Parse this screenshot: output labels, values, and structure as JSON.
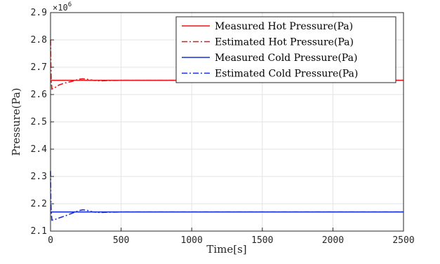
{
  "chart_data": {
    "type": "line",
    "xlabel": "Time[s]",
    "ylabel": "Pressure(Pa)",
    "xlim": [
      0,
      2500
    ],
    "ylim": [
      2.1,
      2.9
    ],
    "y_exponent_label": "×10",
    "y_exponent_power": "6",
    "xticks": [
      0,
      500,
      1000,
      1500,
      2000,
      2500
    ],
    "yticks": [
      2.1,
      2.2,
      2.3,
      2.4,
      2.5,
      2.6,
      2.7,
      2.8,
      2.9
    ],
    "grid": true,
    "legend_position": "top-right",
    "series": [
      {
        "name": "Measured Hot Pressure(Pa)",
        "color": "#e8151b",
        "style": "solid",
        "x": [
          0,
          2500
        ],
        "y": [
          2.652,
          2.652
        ]
      },
      {
        "name": "Estimated Hot Pressure(Pa)",
        "color": "#e8151b",
        "style": "dashdot",
        "x": [
          0,
          2,
          5,
          10,
          30,
          60,
          100,
          150,
          200,
          230,
          260,
          300,
          350,
          400,
          500,
          700,
          1000,
          1500,
          2000,
          2500
        ],
        "y": [
          2.8,
          2.72,
          2.65,
          2.62,
          2.625,
          2.635,
          2.642,
          2.648,
          2.656,
          2.658,
          2.656,
          2.652,
          2.65,
          2.651,
          2.652,
          2.652,
          2.652,
          2.652,
          2.652,
          2.652
        ]
      },
      {
        "name": "Measured Cold Pressure(Pa)",
        "color": "#1a2fd6",
        "style": "solid",
        "x": [
          0,
          2500
        ],
        "y": [
          2.17,
          2.17
        ]
      },
      {
        "name": "Estimated Cold Pressure(Pa)",
        "color": "#1a2fd6",
        "style": "dashdot",
        "x": [
          0,
          2,
          5,
          10,
          30,
          60,
          100,
          150,
          200,
          230,
          260,
          300,
          350,
          400,
          500,
          700,
          1000,
          1500,
          2000,
          2500
        ],
        "y": [
          2.32,
          2.22,
          2.17,
          2.14,
          2.142,
          2.148,
          2.155,
          2.165,
          2.175,
          2.178,
          2.176,
          2.17,
          2.168,
          2.169,
          2.17,
          2.17,
          2.17,
          2.17,
          2.17,
          2.17
        ]
      }
    ]
  }
}
